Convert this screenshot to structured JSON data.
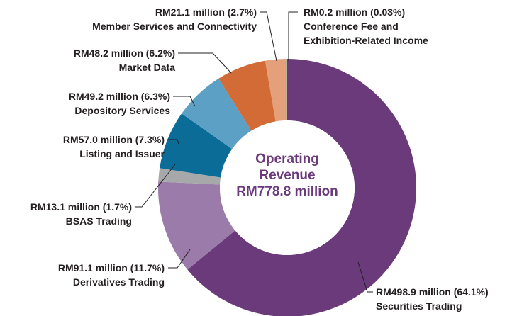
{
  "chart_data": {
    "type": "donut",
    "title": "Operating Revenue",
    "total_label": "RM778.8 million",
    "categories": [
      "Securities Trading",
      "Derivatives Trading",
      "BSAS Trading",
      "Listing and Issuer",
      "Depository Services",
      "Market Data",
      "Member Services and Connectivity",
      "Conference Fee and Exhibition-Related Income"
    ],
    "values": [
      498.9,
      91.1,
      13.1,
      57.0,
      49.2,
      48.2,
      21.1,
      0.2
    ],
    "value_labels": [
      "RM498.9 million (64.1%)",
      "RM91.1 million (11.7%)",
      "RM13.1 million (1.7%)",
      "RM57.0 million (7.3%)",
      "RM49.2 million (6.3%)",
      "RM48.2 million (6.2%)",
      "RM21.1 million (2.7%)",
      "RM0.2 million (0.03%)"
    ],
    "colors": [
      "#6a3a7b",
      "#9a7ba9",
      "#a7a8aa",
      "#0b6c98",
      "#5ca0c6",
      "#d26b35",
      "#e3a07b",
      "#3cb6ae"
    ]
  }
}
